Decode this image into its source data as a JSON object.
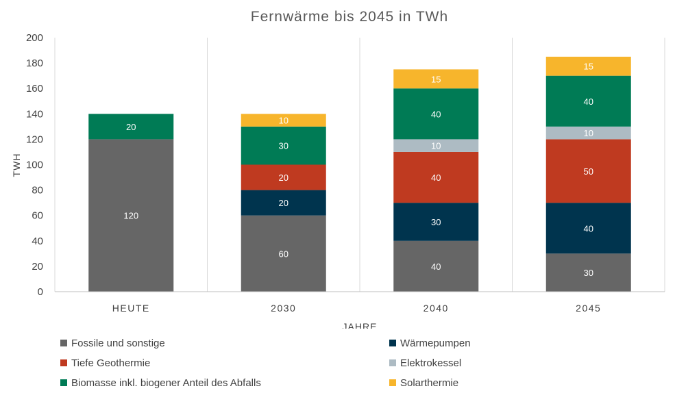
{
  "chart_data": {
    "type": "bar",
    "stacked": true,
    "title": "Fernwärme bis 2045 in TWh",
    "xlabel": "JAHRE",
    "ylabel": "TWH",
    "ylim": [
      0,
      200
    ],
    "yticks": [
      0,
      20,
      40,
      60,
      80,
      100,
      120,
      140,
      160,
      180,
      200
    ],
    "categories": [
      "HEUTE",
      "2030",
      "2040",
      "2045"
    ],
    "series": [
      {
        "name": "Fossile und sonstige",
        "color": "#666666",
        "values": [
          120,
          60,
          40,
          30
        ]
      },
      {
        "name": "Wärmepumpen",
        "color": "#00344e",
        "values": [
          0,
          20,
          30,
          40
        ]
      },
      {
        "name": "Tiefe Geothermie",
        "color": "#bf3a20",
        "values": [
          0,
          20,
          40,
          50
        ]
      },
      {
        "name": "Elektrokessel",
        "color": "#adbbc3",
        "values": [
          0,
          0,
          10,
          10
        ]
      },
      {
        "name": "Biomasse inkl. biogener Anteil des Abfalls",
        "color": "#007b55",
        "values": [
          20,
          30,
          40,
          40
        ]
      },
      {
        "name": "Solarthermie",
        "color": "#f7b52c",
        "values": [
          0,
          10,
          15,
          15
        ]
      }
    ],
    "legend_position": "bottom",
    "grid": "vertical-separators"
  }
}
